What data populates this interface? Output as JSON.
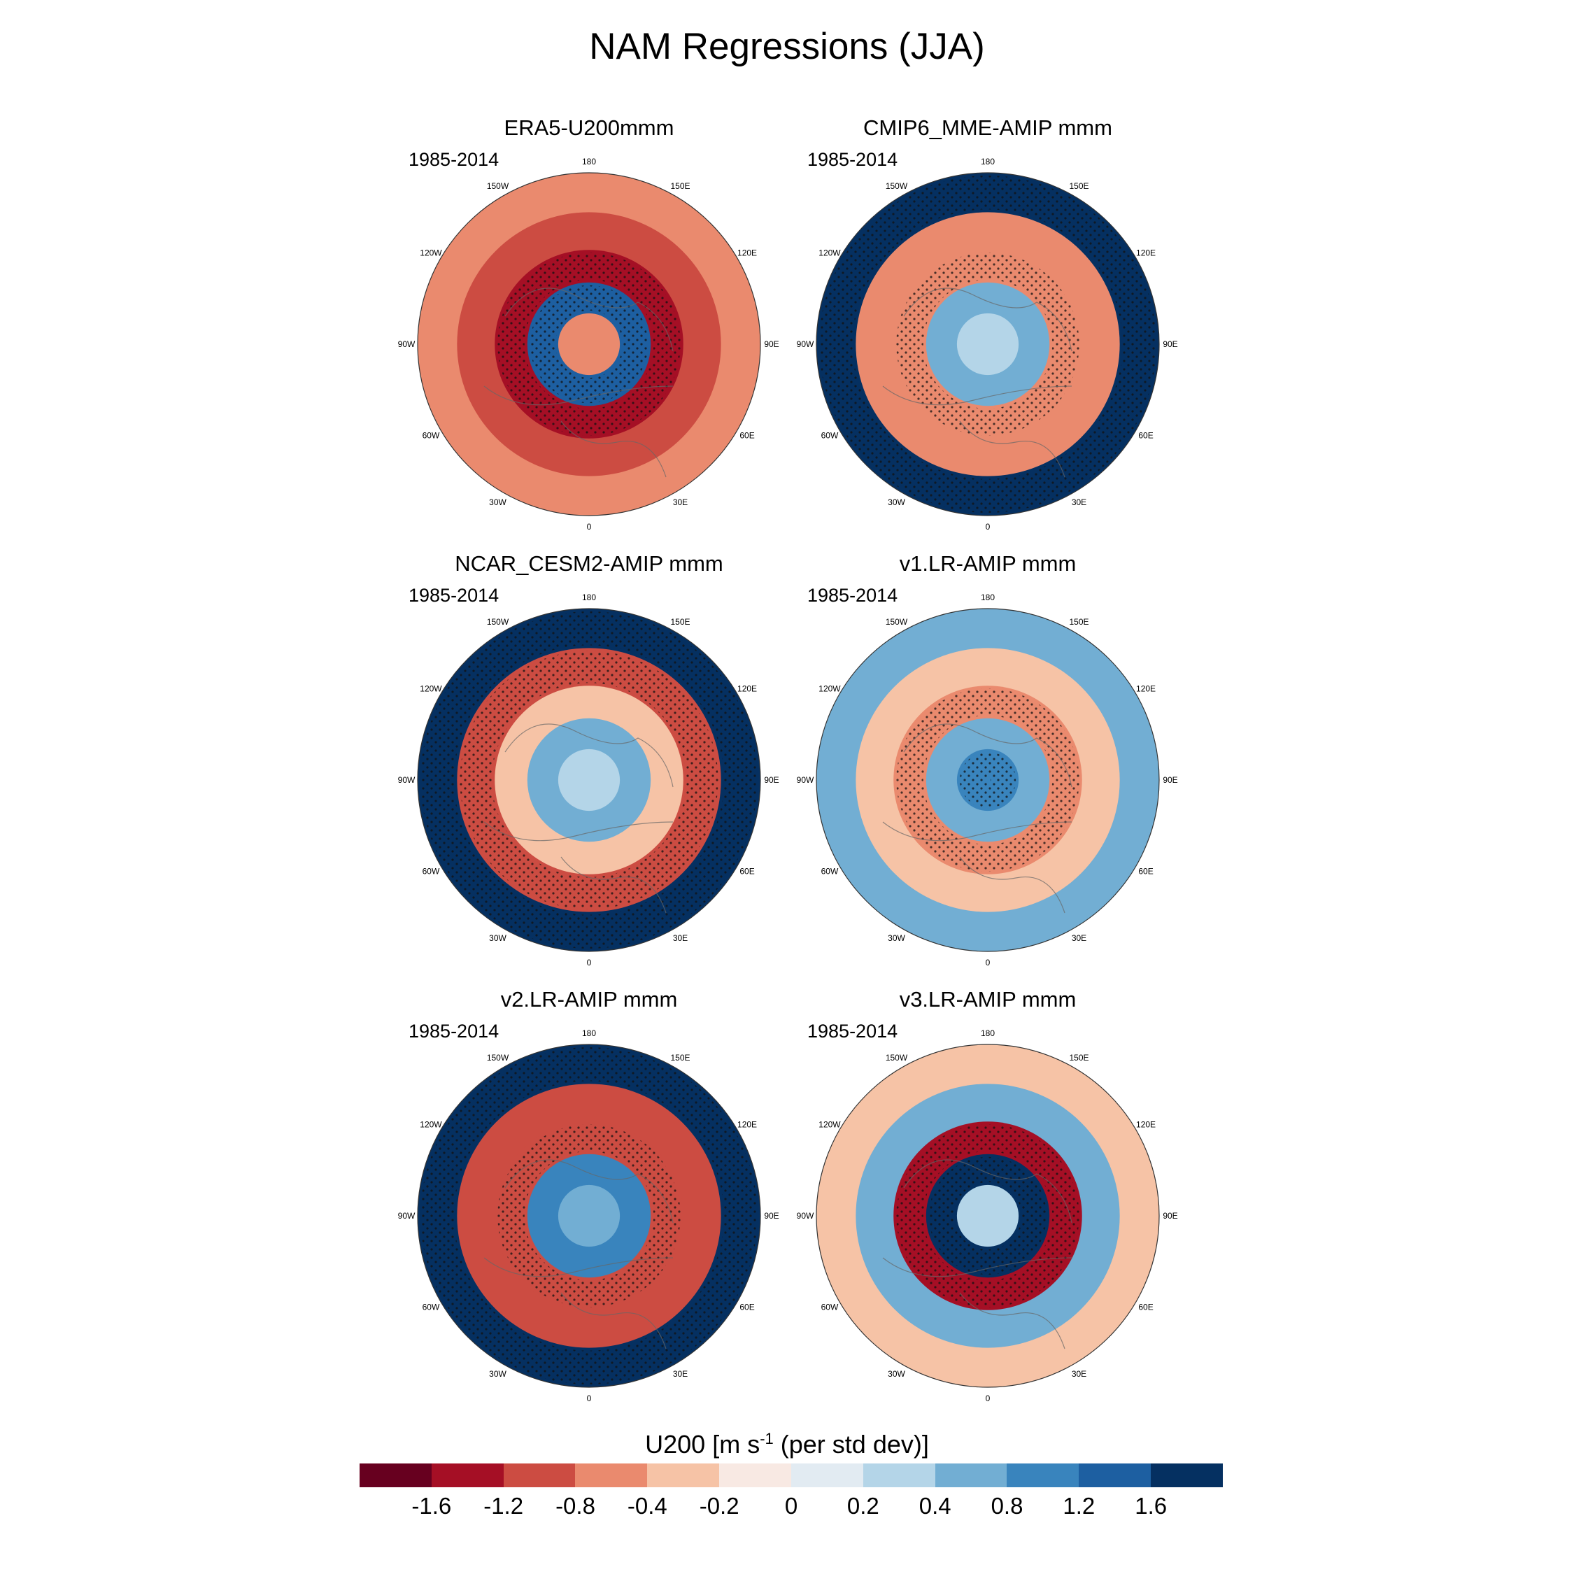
{
  "figure": {
    "title": "NAM Regressions (JJA)",
    "colorbar": {
      "label_main": "U200 [m s",
      "label_sup": "-1",
      "label_tail": " (per std dev)]",
      "ticks": [
        "-1.6",
        "-1.2",
        "-0.8",
        "-0.4",
        "-0.2",
        "0",
        "0.2",
        "0.4",
        "0.8",
        "1.2",
        "1.6"
      ],
      "colors": [
        "#67001f",
        "#a50f25",
        "#cc4c42",
        "#ea8a6e",
        "#f6c3a6",
        "#f8e9e3",
        "#e2ebf2",
        "#b4d5e8",
        "#72aed3",
        "#3984bd",
        "#1d5fa1",
        "#053061"
      ]
    }
  },
  "chart_data": [
    {
      "type": "heatmap",
      "projection": "north-polar-stereographic",
      "title": "ERA5-U200mmm",
      "period": "1985-2014",
      "lon_labels": [
        "180",
        "150E",
        "120E",
        "90E",
        "60E",
        "30E",
        "0",
        "30W",
        "60W",
        "90W",
        "120W",
        "150W"
      ],
      "ring_anomalies": [
        {
          "ring": "pole",
          "value": -0.8
        },
        {
          "ring": "high-latitude",
          "value": 1.2
        },
        {
          "ring": "mid-latitude",
          "value": -1.6
        },
        {
          "ring": "subtropics",
          "value": -1.2
        },
        {
          "ring": "outer-rim",
          "value": -0.8
        }
      ],
      "stippled": true
    },
    {
      "type": "heatmap",
      "projection": "north-polar-stereographic",
      "title": "CMIP6_MME-AMIP  mmm",
      "period": "1985-2014",
      "lon_labels": [
        "180",
        "150E",
        "120E",
        "90E",
        "60E",
        "30E",
        "0",
        "30W",
        "60W",
        "90W",
        "120W",
        "150W"
      ],
      "ring_anomalies": [
        {
          "ring": "pole",
          "value": 0.2
        },
        {
          "ring": "high-latitude",
          "value": 0.4
        },
        {
          "ring": "mid-latitude",
          "value": -0.8
        },
        {
          "ring": "subtropics",
          "value": -0.8
        },
        {
          "ring": "outer-rim",
          "value": 1.6
        }
      ],
      "stippled": true
    },
    {
      "type": "heatmap",
      "projection": "north-polar-stereographic",
      "title": "NCAR_CESM2-AMIP  mmm",
      "period": "1985-2014",
      "lon_labels": [
        "180",
        "150E",
        "120E",
        "90E",
        "60E",
        "30E",
        "0",
        "30W",
        "60W",
        "90W",
        "120W",
        "150W"
      ],
      "ring_anomalies": [
        {
          "ring": "pole",
          "value": 0.2
        },
        {
          "ring": "high-latitude",
          "value": 0.4
        },
        {
          "ring": "mid-latitude",
          "value": -0.4
        },
        {
          "ring": "subtropics",
          "value": -1.2
        },
        {
          "ring": "outer-rim",
          "value": 1.6
        }
      ],
      "stippled": true
    },
    {
      "type": "heatmap",
      "projection": "north-polar-stereographic",
      "title": "v1.LR-AMIP  mmm",
      "period": "1985-2014",
      "lon_labels": [
        "180",
        "150E",
        "120E",
        "90E",
        "60E",
        "30E",
        "0",
        "30W",
        "60W",
        "90W",
        "120W",
        "150W"
      ],
      "ring_anomalies": [
        {
          "ring": "pole",
          "value": 0.8
        },
        {
          "ring": "high-latitude",
          "value": 0.4
        },
        {
          "ring": "mid-latitude",
          "value": -0.8
        },
        {
          "ring": "subtropics",
          "value": -0.4
        },
        {
          "ring": "outer-rim",
          "value": 0.4
        }
      ],
      "stippled": true
    },
    {
      "type": "heatmap",
      "projection": "north-polar-stereographic",
      "title": "v2.LR-AMIP  mmm",
      "period": "1985-2014",
      "lon_labels": [
        "180",
        "150E",
        "120E",
        "90E",
        "60E",
        "30E",
        "0",
        "30W",
        "60W",
        "90W",
        "120W",
        "150W"
      ],
      "ring_anomalies": [
        {
          "ring": "pole",
          "value": 0.4
        },
        {
          "ring": "high-latitude",
          "value": 0.8
        },
        {
          "ring": "mid-latitude",
          "value": -1.2
        },
        {
          "ring": "subtropics",
          "value": -1.2
        },
        {
          "ring": "outer-rim",
          "value": 1.6
        }
      ],
      "stippled": true
    },
    {
      "type": "heatmap",
      "projection": "north-polar-stereographic",
      "title": "v3.LR-AMIP  mmm",
      "period": "1985-2014",
      "lon_labels": [
        "180",
        "150E",
        "120E",
        "90E",
        "60E",
        "30E",
        "0",
        "30W",
        "60W",
        "90W",
        "120W",
        "150W"
      ],
      "ring_anomalies": [
        {
          "ring": "pole",
          "value": 0.2
        },
        {
          "ring": "high-latitude",
          "value": 1.6
        },
        {
          "ring": "mid-latitude",
          "value": -1.6
        },
        {
          "ring": "subtropics",
          "value": 0.4
        },
        {
          "ring": "outer-rim",
          "value": -0.4
        }
      ],
      "stippled": true
    }
  ]
}
